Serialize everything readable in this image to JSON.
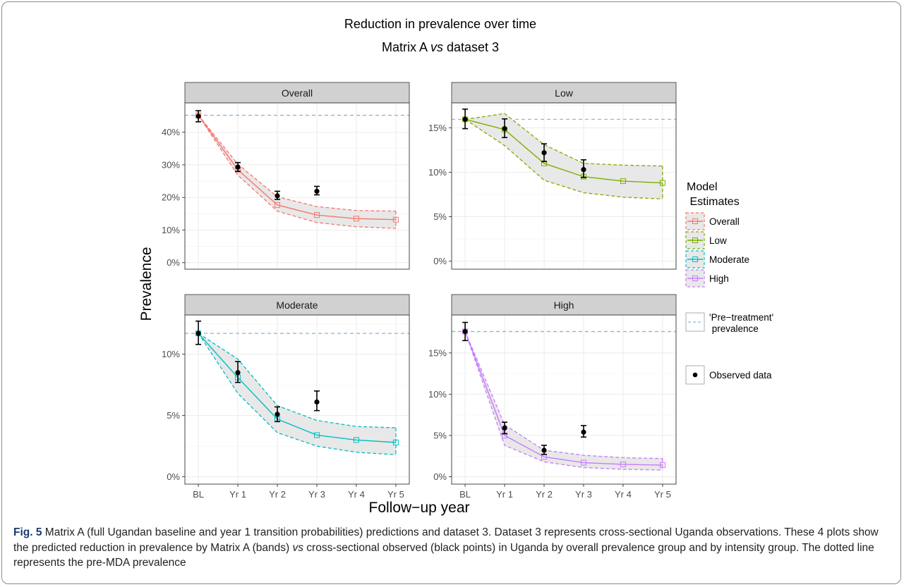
{
  "figure": {
    "title": "Reduction in prevalence over time",
    "subtitle_pre": "Matrix A ",
    "subtitle_em": "vs",
    "subtitle_post": " dataset 3",
    "ylabel": "Prevalence",
    "xlabel": "Follow−up year"
  },
  "legend": {
    "model_title_line1": "Model",
    "model_title_line2": " Estimates",
    "pre_line1": "'Pre−treatment'",
    "pre_line2": " prevalence",
    "observed": "Observed data"
  },
  "colors": {
    "Overall": "#F8766D",
    "Low": "#7CAE00",
    "Moderate": "#00BFC4",
    "High": "#C77CFF",
    "pretreatment": "#8FB9D9",
    "band_fill": "#E8E8E8",
    "strip_fill": "#D1D1D1"
  },
  "caption": {
    "label": "Fig. 5",
    "part1": " Matrix A (full Ugandan baseline and year 1 transition probabilities) predictions and dataset 3. Dataset 3 represents cross-sectional Uganda observations. These 4 plots show the predicted reduction in prevalence by Matrix A (bands) ",
    "em": "vs",
    "part2": " cross-sectional observed (black points) in Uganda by overall prevalence group and by intensity group. The dotted line represents the pre-MDA prevalence"
  },
  "chart_data": [
    {
      "type": "line",
      "panel": "Overall",
      "x": [
        "BL",
        "Yr 1",
        "Yr 2",
        "Yr 3",
        "Yr 4",
        "Yr 5"
      ],
      "yticks": [
        0,
        10,
        20,
        30,
        40
      ],
      "yticklabels": [
        "0%",
        "10%",
        "20%",
        "30%",
        "40%"
      ],
      "ylim": [
        -2,
        49
      ],
      "pretreatment": 45.2,
      "series": [
        {
          "name": "Overall",
          "values": [
            45.2,
            28.5,
            17.7,
            14.6,
            13.5,
            13.2
          ]
        }
      ],
      "band_lower": [
        45.2,
        26.8,
        15.8,
        12.3,
        11.0,
        10.5
      ],
      "band_upper": [
        45.2,
        30.2,
        20.2,
        17.2,
        16.0,
        15.8
      ],
      "observed": [
        {
          "x": "BL",
          "y": 44.9,
          "lo": 43.2,
          "hi": 46.6
        },
        {
          "x": "Yr 1",
          "y": 29.3,
          "lo": 28.0,
          "hi": 30.7
        },
        {
          "x": "Yr 2",
          "y": 20.5,
          "lo": 19.4,
          "hi": 21.9
        },
        {
          "x": "Yr 3",
          "y": 21.9,
          "lo": 20.8,
          "hi": 23.4
        }
      ]
    },
    {
      "type": "line",
      "panel": "Low",
      "x": [
        "BL",
        "Yr 1",
        "Yr 2",
        "Yr 3",
        "Yr 4",
        "Yr 5"
      ],
      "yticks": [
        0,
        5,
        10,
        15
      ],
      "yticklabels": [
        "0%",
        "5%",
        "10%",
        "15%"
      ],
      "ylim": [
        -0.9,
        17.8
      ],
      "pretreatment": 15.95,
      "series": [
        {
          "name": "Low",
          "values": [
            15.95,
            14.8,
            11.0,
            9.5,
            9.0,
            8.8
          ]
        }
      ],
      "band_lower": [
        15.95,
        13.0,
        9.1,
        7.7,
        7.2,
        7.0
      ],
      "band_upper": [
        15.95,
        16.6,
        13.1,
        11.0,
        10.8,
        10.7
      ],
      "observed": [
        {
          "x": "BL",
          "y": 15.95,
          "lo": 14.9,
          "hi": 17.1
        },
        {
          "x": "Yr 1",
          "y": 14.9,
          "lo": 13.9,
          "hi": 16.0
        },
        {
          "x": "Yr 2",
          "y": 12.2,
          "lo": 11.2,
          "hi": 13.2
        },
        {
          "x": "Yr 3",
          "y": 10.3,
          "lo": 9.4,
          "hi": 11.4
        }
      ]
    },
    {
      "type": "line",
      "panel": "Moderate",
      "x": [
        "BL",
        "Yr 1",
        "Yr 2",
        "Yr 3",
        "Yr 4",
        "Yr 5"
      ],
      "yticks": [
        0,
        5,
        10
      ],
      "yticklabels": [
        "0%",
        "5%",
        "10%"
      ],
      "ylim": [
        -0.6,
        13.2
      ],
      "pretreatment": 11.7,
      "series": [
        {
          "name": "Moderate",
          "values": [
            11.7,
            8.1,
            4.7,
            3.4,
            3.0,
            2.8
          ]
        }
      ],
      "band_lower": [
        11.7,
        6.8,
        3.6,
        2.5,
        2.0,
        1.8
      ],
      "band_upper": [
        11.7,
        9.6,
        5.8,
        4.6,
        4.1,
        4.0
      ],
      "observed": [
        {
          "x": "BL",
          "y": 11.7,
          "lo": 10.8,
          "hi": 12.7
        },
        {
          "x": "Yr 1",
          "y": 8.5,
          "lo": 7.7,
          "hi": 9.4
        },
        {
          "x": "Yr 2",
          "y": 5.1,
          "lo": 4.5,
          "hi": 5.7
        },
        {
          "x": "Yr 3",
          "y": 6.1,
          "lo": 5.4,
          "hi": 7.0
        }
      ]
    },
    {
      "type": "line",
      "panel": "High",
      "x": [
        "BL",
        "Yr 1",
        "Yr 2",
        "Yr 3",
        "Yr 4",
        "Yr 5"
      ],
      "yticks": [
        0,
        5,
        10,
        15
      ],
      "yticklabels": [
        "0%",
        "5%",
        "10%",
        "15%"
      ],
      "ylim": [
        -0.9,
        19.6
      ],
      "pretreatment": 17.6,
      "series": [
        {
          "name": "High",
          "values": [
            17.6,
            5.0,
            2.4,
            1.7,
            1.5,
            1.4
          ]
        }
      ],
      "band_lower": [
        17.6,
        3.8,
        1.8,
        1.1,
        0.9,
        0.8
      ],
      "band_upper": [
        17.6,
        6.3,
        3.2,
        2.6,
        2.3,
        2.2
      ],
      "observed": [
        {
          "x": "BL",
          "y": 17.6,
          "lo": 16.5,
          "hi": 18.7
        },
        {
          "x": "Yr 1",
          "y": 5.9,
          "lo": 5.2,
          "hi": 6.6
        },
        {
          "x": "Yr 2",
          "y": 3.2,
          "lo": 2.7,
          "hi": 3.8
        },
        {
          "x": "Yr 3",
          "y": 5.4,
          "lo": 4.8,
          "hi": 6.2
        }
      ]
    }
  ]
}
